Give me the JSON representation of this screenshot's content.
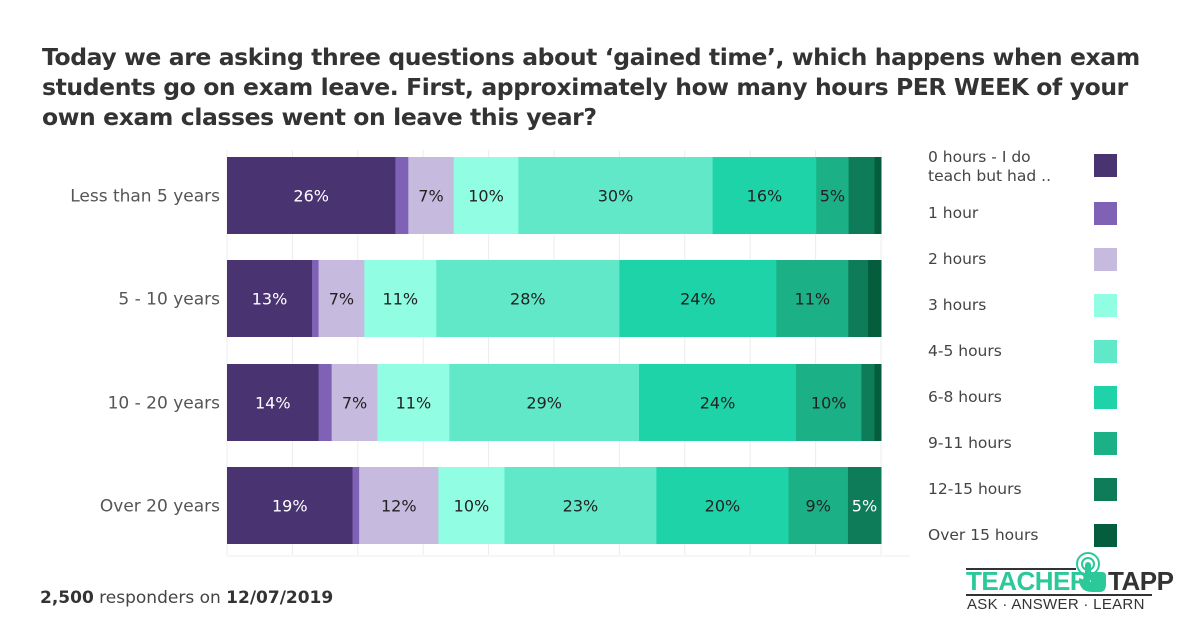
{
  "title": "Today we are asking three questions about ‘gained time’, which happens when exam students go on exam leave. First, approximately how many hours PER WEEK of your own exam classes went on leave this year?",
  "footer": {
    "count": "2,500",
    "middle": " responders on ",
    "date": "12/07/2019"
  },
  "logo": {
    "word1": "TEACHER",
    "word2": "TAPP",
    "tagline": "ASK · ANSWER · LEARN",
    "icon": "tap-finger-icon",
    "accent": "#2bc99a"
  },
  "chart_data": {
    "type": "bar",
    "orientation": "horizontal",
    "stacked": true,
    "normalized": true,
    "title": "Today we are asking three questions about ‘gained time’, which happens when exam students go on exam leave. First, approximately how many hours PER WEEK of your own exam classes went on leave this year?",
    "xlabel": "",
    "ylabel": "",
    "xlim": [
      0,
      100
    ],
    "grid": true,
    "legend_position": "right",
    "categories": [
      "Less than 5 years",
      "5 - 10 years",
      "10 - 20 years",
      "Over 20 years"
    ],
    "series": [
      {
        "name": "0  hours - I do teach but had ..",
        "color": "#4a3371",
        "label_color": "#ffffff",
        "values": [
          26,
          13,
          14,
          19
        ]
      },
      {
        "name": "1 hour",
        "color": "#7f62b6",
        "label_color": "#ffffff",
        "values": [
          2,
          1,
          2,
          1
        ]
      },
      {
        "name": "2 hours",
        "color": "#c6badf",
        "label_color": "#222222",
        "values": [
          7,
          7,
          7,
          12
        ]
      },
      {
        "name": "3 hours",
        "color": "#91fde3",
        "label_color": "#222222",
        "values": [
          10,
          11,
          11,
          10
        ]
      },
      {
        "name": "4-5 hours",
        "color": "#60e8c8",
        "label_color": "#222222",
        "values": [
          30,
          28,
          29,
          23
        ]
      },
      {
        "name": "6-8 hours",
        "color": "#1fd3a8",
        "label_color": "#222222",
        "values": [
          16,
          24,
          24,
          20
        ]
      },
      {
        "name": "9-11 hours",
        "color": "#1cb086",
        "label_color": "#222222",
        "values": [
          5,
          11,
          10,
          9
        ]
      },
      {
        "name": "12-15 hours",
        "color": "#0f7c59",
        "label_color": "#ffffff",
        "values": [
          4,
          3,
          2,
          5
        ]
      },
      {
        "name": "Over 15 hours",
        "color": "#045e3d",
        "label_color": "#ffffff",
        "values": [
          1,
          2,
          1,
          0
        ]
      }
    ],
    "label_threshold": 5
  }
}
